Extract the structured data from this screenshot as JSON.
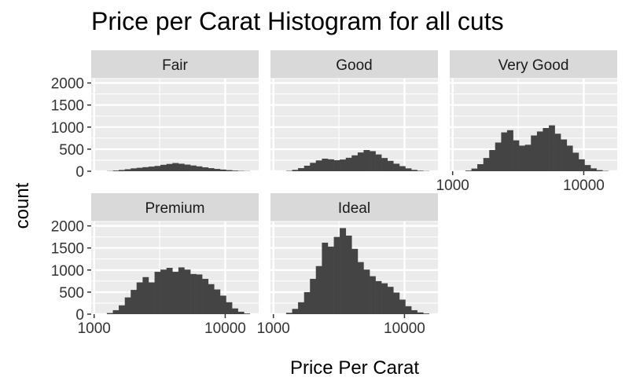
{
  "chart_data": {
    "type": "histogram",
    "title": "Price per Carat Histogram for all cuts",
    "xlabel": "Price Per Carat",
    "ylabel": "count",
    "x_scale": "log10",
    "xlim": [
      950,
      18000
    ],
    "ylim": [
      0,
      2100
    ],
    "x_ticks": [
      1000,
      10000
    ],
    "x_tick_labels": [
      "1000",
      "10000"
    ],
    "y_ticks": [
      0,
      500,
      1000,
      1500,
      2000
    ],
    "y_tick_labels": [
      "0",
      "500",
      "1000",
      "1500",
      "2000"
    ],
    "grid": true,
    "bar_color": "#444444",
    "facets": [
      {
        "label": "Fair",
        "bins_log10": [
          [
            3.097,
            3.143
          ],
          [
            3.143,
            3.188
          ],
          [
            3.188,
            3.234
          ],
          [
            3.234,
            3.279
          ],
          [
            3.279,
            3.324
          ],
          [
            3.324,
            3.37
          ],
          [
            3.37,
            3.415
          ],
          [
            3.415,
            3.461
          ],
          [
            3.461,
            3.506
          ],
          [
            3.506,
            3.552
          ],
          [
            3.552,
            3.597
          ],
          [
            3.597,
            3.643
          ],
          [
            3.643,
            3.688
          ],
          [
            3.688,
            3.734
          ],
          [
            3.734,
            3.779
          ],
          [
            3.779,
            3.824
          ],
          [
            3.824,
            3.87
          ],
          [
            3.87,
            3.915
          ],
          [
            3.915,
            3.961
          ],
          [
            3.961,
            4.006
          ],
          [
            4.006,
            4.052
          ],
          [
            4.052,
            4.097
          ],
          [
            4.097,
            4.143
          ],
          [
            4.143,
            4.188
          ]
        ],
        "counts": [
          5,
          15,
          28,
          45,
          65,
          78,
          92,
          105,
          120,
          145,
          165,
          185,
          170,
          150,
          130,
          110,
          88,
          70,
          52,
          38,
          25,
          15,
          8,
          4
        ]
      },
      {
        "label": "Good",
        "bins_log10": [
          [
            3.097,
            3.143
          ],
          [
            3.143,
            3.188
          ],
          [
            3.188,
            3.234
          ],
          [
            3.234,
            3.279
          ],
          [
            3.279,
            3.324
          ],
          [
            3.324,
            3.37
          ],
          [
            3.37,
            3.415
          ],
          [
            3.415,
            3.461
          ],
          [
            3.461,
            3.506
          ],
          [
            3.506,
            3.552
          ],
          [
            3.552,
            3.597
          ],
          [
            3.597,
            3.643
          ],
          [
            3.643,
            3.688
          ],
          [
            3.688,
            3.734
          ],
          [
            3.734,
            3.779
          ],
          [
            3.779,
            3.824
          ],
          [
            3.824,
            3.87
          ],
          [
            3.87,
            3.915
          ],
          [
            3.915,
            3.961
          ],
          [
            3.961,
            4.006
          ],
          [
            4.006,
            4.052
          ],
          [
            4.052,
            4.097
          ],
          [
            4.097,
            4.143
          ],
          [
            4.143,
            4.188
          ]
        ],
        "counts": [
          8,
          30,
          70,
          125,
          190,
          245,
          285,
          270,
          250,
          265,
          305,
          360,
          425,
          480,
          455,
          380,
          300,
          235,
          170,
          115,
          65,
          30,
          12,
          5
        ]
      },
      {
        "label": "Very Good",
        "bins_log10": [
          [
            3.097,
            3.143
          ],
          [
            3.143,
            3.188
          ],
          [
            3.188,
            3.234
          ],
          [
            3.234,
            3.279
          ],
          [
            3.279,
            3.324
          ],
          [
            3.324,
            3.37
          ],
          [
            3.37,
            3.415
          ],
          [
            3.415,
            3.461
          ],
          [
            3.461,
            3.506
          ],
          [
            3.506,
            3.552
          ],
          [
            3.552,
            3.597
          ],
          [
            3.597,
            3.643
          ],
          [
            3.643,
            3.688
          ],
          [
            3.688,
            3.734
          ],
          [
            3.734,
            3.779
          ],
          [
            3.779,
            3.824
          ],
          [
            3.824,
            3.87
          ],
          [
            3.87,
            3.915
          ],
          [
            3.915,
            3.961
          ],
          [
            3.961,
            4.006
          ],
          [
            4.006,
            4.052
          ],
          [
            4.052,
            4.097
          ],
          [
            4.097,
            4.143
          ],
          [
            4.143,
            4.188
          ]
        ],
        "counts": [
          15,
          60,
          160,
          300,
          480,
          650,
          880,
          930,
          700,
          580,
          600,
          810,
          900,
          980,
          1040,
          850,
          720,
          580,
          420,
          270,
          140,
          65,
          25,
          8
        ]
      },
      {
        "label": "Premium",
        "bins_log10": [
          [
            3.097,
            3.143
          ],
          [
            3.143,
            3.188
          ],
          [
            3.188,
            3.234
          ],
          [
            3.234,
            3.279
          ],
          [
            3.279,
            3.324
          ],
          [
            3.324,
            3.37
          ],
          [
            3.37,
            3.415
          ],
          [
            3.415,
            3.461
          ],
          [
            3.461,
            3.506
          ],
          [
            3.506,
            3.552
          ],
          [
            3.552,
            3.597
          ],
          [
            3.597,
            3.643
          ],
          [
            3.643,
            3.688
          ],
          [
            3.688,
            3.734
          ],
          [
            3.734,
            3.779
          ],
          [
            3.779,
            3.824
          ],
          [
            3.824,
            3.87
          ],
          [
            3.87,
            3.915
          ],
          [
            3.915,
            3.961
          ],
          [
            3.961,
            4.006
          ],
          [
            4.006,
            4.052
          ],
          [
            4.052,
            4.097
          ],
          [
            4.097,
            4.143
          ],
          [
            4.143,
            4.188
          ]
        ],
        "counts": [
          25,
          90,
          200,
          380,
          550,
          720,
          840,
          720,
          960,
          1010,
          1050,
          960,
          1060,
          1010,
          910,
          900,
          800,
          680,
          560,
          420,
          270,
          130,
          55,
          15
        ]
      },
      {
        "label": "Ideal",
        "bins_log10": [
          [
            3.097,
            3.143
          ],
          [
            3.143,
            3.188
          ],
          [
            3.188,
            3.234
          ],
          [
            3.234,
            3.279
          ],
          [
            3.279,
            3.324
          ],
          [
            3.324,
            3.37
          ],
          [
            3.37,
            3.415
          ],
          [
            3.415,
            3.461
          ],
          [
            3.461,
            3.506
          ],
          [
            3.506,
            3.552
          ],
          [
            3.552,
            3.597
          ],
          [
            3.597,
            3.643
          ],
          [
            3.643,
            3.688
          ],
          [
            3.688,
            3.734
          ],
          [
            3.734,
            3.779
          ],
          [
            3.779,
            3.824
          ],
          [
            3.824,
            3.87
          ],
          [
            3.87,
            3.915
          ],
          [
            3.915,
            3.961
          ],
          [
            3.961,
            4.006
          ],
          [
            4.006,
            4.052
          ],
          [
            4.052,
            4.097
          ],
          [
            4.097,
            4.143
          ],
          [
            4.143,
            4.188
          ]
        ],
        "counts": [
          30,
          120,
          270,
          500,
          800,
          1090,
          1620,
          1530,
          1750,
          1950,
          1780,
          1480,
          1180,
          1010,
          860,
          750,
          700,
          620,
          490,
          330,
          180,
          90,
          40,
          15
        ]
      }
    ]
  }
}
